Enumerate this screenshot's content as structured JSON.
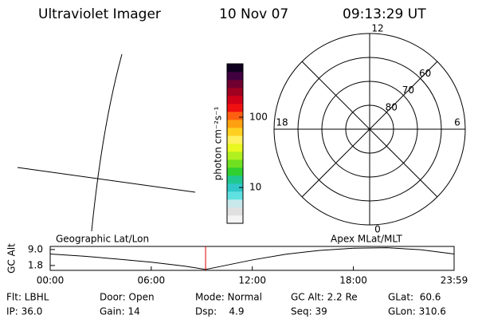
{
  "header": {
    "title": "Ultraviolet Imager",
    "date": "10 Nov 07",
    "time": "09:13:29 UT"
  },
  "colorbar": {
    "label": "photon cm⁻²s⁻¹",
    "scale": "log",
    "clim": [
      3.1,
      575
    ],
    "ticks": [
      10,
      100
    ],
    "colors": [
      "#f4f4f4",
      "#e0e0e0",
      "#c8e8ec",
      "#60e0e0",
      "#30c8c8",
      "#20c890",
      "#30d030",
      "#70e020",
      "#b0f020",
      "#e8f820",
      "#fff060",
      "#ffd020",
      "#ffa010",
      "#ff6010",
      "#f01010",
      "#d00018",
      "#a00020",
      "#700030",
      "#400040",
      "#100020"
    ]
  },
  "polar": {
    "lat_labels": [
      80,
      70,
      60
    ],
    "lat_limit": 50,
    "mlt_labels": [
      12,
      6,
      0,
      18
    ]
  },
  "orbit": {
    "left_label": "Geographic Lat/Lon",
    "right_label": "Apex MLat/MLT",
    "ylabel": "GC Alt",
    "x": [
      0,
      2,
      4,
      6,
      8,
      9.225,
      10,
      12,
      14,
      16,
      18,
      20,
      22,
      23.98
    ],
    "values": [
      7.0,
      6.0,
      4.7,
      3.3,
      1.5,
      0.0,
      1.2,
      4.3,
      6.9,
      8.6,
      9.6,
      9.8,
      8.9,
      7.0
    ],
    "xlim": [
      0,
      23.98
    ],
    "xticks": [
      {
        "value": 0,
        "label": "00:00"
      },
      {
        "value": 6,
        "label": "06:00"
      },
      {
        "value": 12,
        "label": "12:00"
      },
      {
        "value": 18,
        "label": "18:00"
      },
      {
        "value": 23.98,
        "label": "23:59"
      }
    ],
    "ylim": [
      -0.4,
      10.4
    ],
    "yticks": [
      {
        "value": 9.0,
        "label": "9.0"
      },
      {
        "value": 1.8,
        "label": "1.8"
      }
    ],
    "marker_x": 9.225,
    "marker_color": "#e00000"
  },
  "footer": {
    "rows": [
      [
        "Flt: LBHL",
        "Door: Open",
        "Mode: Normal",
        "GC Alt: 2.2 Re",
        "GLat:  60.6"
      ],
      [
        "IP: 36.0",
        "Gain: 14",
        "Dsp:    4.9",
        "Seq: 39",
        "GLon: 310.6"
      ]
    ]
  }
}
